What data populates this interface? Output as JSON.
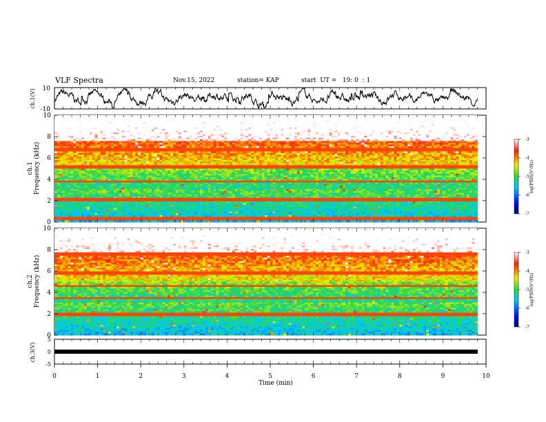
{
  "header": {
    "title": "VLF Spectra",
    "date": "Nov.15, 2022",
    "station": "station= KAP",
    "start": "start  UT =   19: 0  : 1"
  },
  "chart_data": [
    {
      "type": "line",
      "panel": "waveform-ch1",
      "ylabel": "ch.1(V)",
      "ylim": [
        -10,
        10
      ],
      "yticklabels": [
        "10",
        "-10"
      ],
      "xlim": [
        0,
        10
      ],
      "note_data_extent_min": 9.8
    },
    {
      "type": "heatmap",
      "panel": "spectrogram-ch1",
      "ylabel": "ch.1\nFrequency  (kHz)",
      "ylim": [
        0,
        10
      ],
      "yticks": [
        0,
        2,
        4,
        6,
        8,
        10
      ],
      "xlim": [
        0,
        10
      ],
      "colorbar": {
        "label": "log(PSD)(V²/Hz)",
        "range": [
          -7,
          -3
        ],
        "ticks": [
          -3,
          -4,
          -5,
          -6,
          -7
        ]
      }
    },
    {
      "type": "heatmap",
      "panel": "spectrogram-ch2",
      "ylabel": "ch.2\nFrequency  (kHz)",
      "ylim": [
        0,
        10
      ],
      "yticks": [
        0,
        2,
        4,
        6,
        8,
        10
      ],
      "xlim": [
        0,
        10
      ],
      "colorbar": {
        "label": "log(PSD)(V²/Hz)",
        "range": [
          -7,
          -3
        ],
        "ticks": [
          -3,
          -4,
          -5,
          -6,
          -7
        ]
      }
    },
    {
      "type": "line",
      "panel": "waveform-ch3",
      "ylabel": "ch.3(V)",
      "ylim": [
        -5,
        5
      ],
      "yticks": [
        -5,
        0,
        5
      ],
      "xlim": [
        0,
        10
      ],
      "xticks": [
        0,
        1,
        2,
        3,
        4,
        5,
        6,
        7,
        8,
        9,
        10
      ],
      "xlabel": "Time  (min)"
    }
  ],
  "colors": {
    "spectrum_low": "#1f3fd8",
    "spectrum_mid": "#2ed36a",
    "spectrum_high": "#ff2a10",
    "trace": "#000000"
  }
}
